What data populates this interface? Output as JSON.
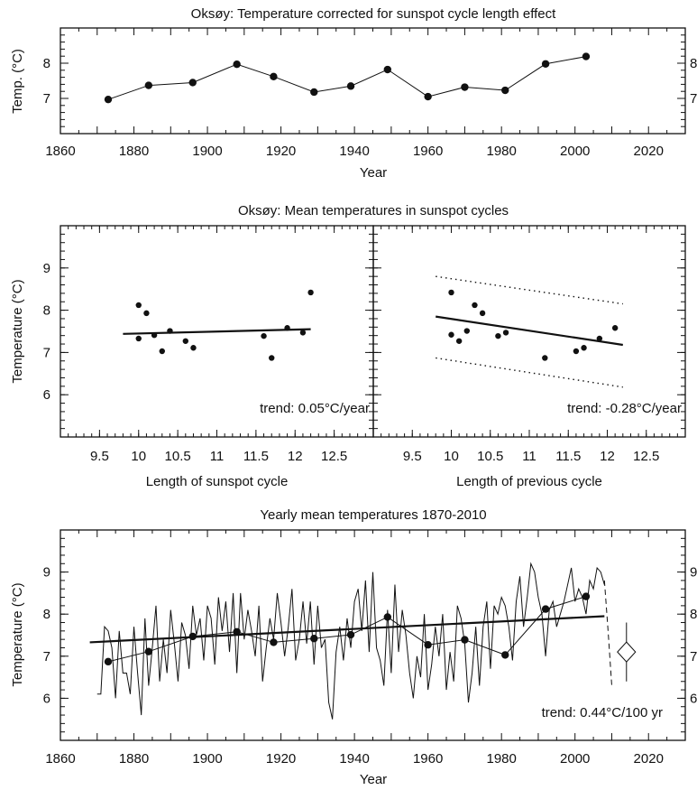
{
  "chart_data": [
    {
      "id": "p1",
      "type": "line",
      "title": "Oksøy: Temperature corrected for sunspot cycle length effect",
      "xlabel": "Year",
      "ylabel": "Temp. (°C)",
      "xlim": [
        1860,
        2030
      ],
      "ylim": [
        6,
        9
      ],
      "xticks": [
        "1860",
        "1880",
        "1900",
        "1920",
        "1940",
        "1960",
        "1980",
        "2000",
        "2020"
      ],
      "yticks": [
        "7",
        "8"
      ],
      "yticks_right": [
        "7",
        "8"
      ],
      "x": [
        1873,
        1884,
        1896,
        1908,
        1918,
        1929,
        1939,
        1949,
        1960,
        1970,
        1981,
        1992,
        2003
      ],
      "y": [
        6.97,
        7.37,
        7.45,
        7.97,
        7.62,
        7.18,
        7.35,
        7.82,
        7.05,
        7.32,
        7.23,
        7.98,
        8.19
      ],
      "grid": false
    },
    {
      "id": "p2",
      "type": "scatter",
      "title": "Oksøy: Mean temperatures in sunspot cycles",
      "xlabel": "Length of sunspot cycle",
      "ylabel": "Temperature (°C)",
      "xlim": [
        9,
        13
      ],
      "ylim": [
        5,
        10
      ],
      "xticks": [
        "9.5",
        "10",
        "10.5",
        "11",
        "11.5",
        "12",
        "12.5"
      ],
      "yticks": [
        "6",
        "7",
        "8",
        "9"
      ],
      "x": [
        10.0,
        10.0,
        10.1,
        10.2,
        10.3,
        10.4,
        10.6,
        10.7,
        11.6,
        11.7,
        11.9,
        12.1,
        12.2
      ],
      "y": [
        8.12,
        7.33,
        7.93,
        7.41,
        7.03,
        7.51,
        7.27,
        7.11,
        7.39,
        6.87,
        7.58,
        7.47,
        8.42
      ],
      "trend_line": {
        "x": [
          9.8,
          12.2
        ],
        "y": [
          7.44,
          7.55
        ]
      },
      "annotation": "trend: 0.05°C/year",
      "grid": false
    },
    {
      "id": "p3",
      "type": "scatter",
      "title": "",
      "xlabel": "Length of previous cycle",
      "ylabel": "",
      "xlim": [
        9,
        13
      ],
      "ylim": [
        5,
        10
      ],
      "xticks": [
        "9.5",
        "10",
        "10.5",
        "11",
        "11.5",
        "12",
        "12.5"
      ],
      "x": [
        10.0,
        10.0,
        10.1,
        10.2,
        10.3,
        10.4,
        10.6,
        10.7,
        11.2,
        11.6,
        11.7,
        11.9,
        12.1
      ],
      "y": [
        8.42,
        7.42,
        7.27,
        7.51,
        8.12,
        7.93,
        7.39,
        7.47,
        6.87,
        7.03,
        7.11,
        7.33,
        7.58
      ],
      "trend_line": {
        "x": [
          9.8,
          12.2
        ],
        "y": [
          7.85,
          7.18
        ]
      },
      "confidence_band": {
        "upper": {
          "x": [
            9.8,
            12.2
          ],
          "y": [
            8.8,
            8.15
          ]
        },
        "lower": {
          "x": [
            9.8,
            12.2
          ],
          "y": [
            6.87,
            6.18
          ]
        }
      },
      "annotation": "trend: -0.28°C/year",
      "grid": false
    },
    {
      "id": "p4",
      "type": "line",
      "title": "Yearly mean temperatures 1870-2010",
      "xlabel": "Year",
      "ylabel": "Temperature (°C)",
      "xlim": [
        1860,
        2030
      ],
      "ylim": [
        5,
        10
      ],
      "xticks": [
        "1860",
        "1880",
        "1900",
        "1920",
        "1940",
        "1960",
        "1980",
        "2000",
        "2020"
      ],
      "yticks": [
        "6",
        "7",
        "8",
        "9"
      ],
      "yticks_right": [
        "6",
        "7",
        "8",
        "9"
      ],
      "series": [
        {
          "kind": "yearly",
          "x_start": 1870,
          "values": [
            6.1,
            6.1,
            7.7,
            7.6,
            7.2,
            6.0,
            7.6,
            6.6,
            6.6,
            6.1,
            7.7,
            6.6,
            5.6,
            7.9,
            6.3,
            7.2,
            8.2,
            6.4,
            7.4,
            6.6,
            8.1,
            7.3,
            6.4,
            7.8,
            7.5,
            6.7,
            8.2,
            7.5,
            7.9,
            6.9,
            8.2,
            7.9,
            6.8,
            8.4,
            7.6,
            8.3,
            7.1,
            8.5,
            6.6,
            8.5,
            7.4,
            8.1,
            7.6,
            7.0,
            8.2,
            6.4,
            7.2,
            7.9,
            7.4,
            8.5,
            7.8,
            7.0,
            7.7,
            8.6,
            6.9,
            7.4,
            8.3,
            7.3,
            8.3,
            6.8,
            8.2,
            7.2,
            7.4,
            5.9,
            5.5,
            7.1,
            7.7,
            6.9,
            7.9,
            7.2,
            8.3,
            8.6,
            7.6,
            8.8,
            7.1,
            9.0,
            7.2,
            6.9,
            6.3,
            8.1,
            6.6,
            8.7,
            7.1,
            8.1,
            7.5,
            6.6,
            6.0,
            7.0,
            6.5,
            8.0,
            6.2,
            6.8,
            7.7,
            7.0,
            8.0,
            6.2,
            7.1,
            6.4,
            8.2,
            7.9,
            7.3,
            5.9,
            6.6,
            7.7,
            6.3,
            7.7,
            8.3,
            6.7,
            8.2,
            8.0,
            8.4,
            8.2,
            7.7,
            6.9,
            8.3,
            8.9,
            7.7,
            8.4,
            9.2,
            9.0,
            8.4,
            8.0,
            7.0,
            8.1,
            8.3,
            7.7,
            8.0,
            8.3,
            8.7,
            9.1,
            8.3,
            8.6,
            8.4,
            8.0,
            8.8,
            8.6,
            9.1,
            9.0,
            8.7
          ]
        },
        {
          "kind": "cycle_means",
          "x": [
            1873,
            1884,
            1896,
            1908,
            1918,
            1929,
            1939,
            1949,
            1960,
            1970,
            1981,
            1992,
            2003
          ],
          "y": [
            6.87,
            7.11,
            7.47,
            7.58,
            7.33,
            7.42,
            7.51,
            7.93,
            7.27,
            7.39,
            7.03,
            8.12,
            8.42
          ]
        },
        {
          "kind": "trend",
          "x": [
            1868,
            2008
          ],
          "y": [
            7.33,
            7.95
          ]
        },
        {
          "kind": "projection",
          "x": [
            2008,
            2009,
            2010
          ],
          "y": [
            8.8,
            7.6,
            6.3
          ]
        },
        {
          "kind": "forecast",
          "x": 2014,
          "y": 7.1,
          "y_low": 6.4,
          "y_high": 7.8
        }
      ],
      "annotation": "trend: 0.44°C/100 yr",
      "grid": false
    }
  ]
}
